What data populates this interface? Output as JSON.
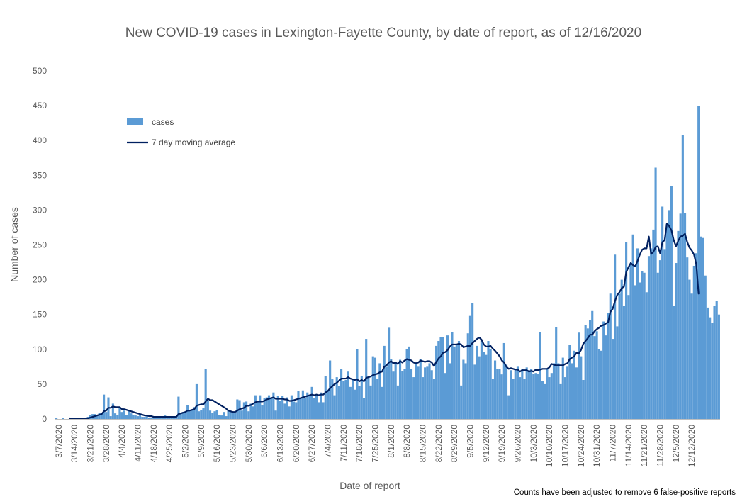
{
  "chart_data": {
    "type": "bar",
    "title": "New COVID-19 cases in Lexington-Fayette County, by date of report, as of 12/16/2020",
    "xlabel": "Date of report",
    "ylabel": "Number of cases",
    "ylim": [
      0,
      500
    ],
    "yticks": [
      0,
      50,
      100,
      150,
      200,
      250,
      300,
      350,
      400,
      450,
      500
    ],
    "x_tick_labels": [
      "3/7/2020",
      "3/14/2020",
      "3/21/2020",
      "3/28/2020",
      "4/4/2020",
      "4/11/2020",
      "4/18/2020",
      "4/25/2020",
      "5/2/2020",
      "5/9/2020",
      "5/16/2020",
      "5/23/2020",
      "5/30/2020",
      "6/6/2020",
      "6/13/2020",
      "6/20/2020",
      "6/27/2020",
      "7/4/2020",
      "7/11/2020",
      "7/18/2020",
      "7/25/2020",
      "8/1/2020",
      "8/8/2020",
      "8/15/2020",
      "8/22/2020",
      "8/29/2020",
      "9/5/2020",
      "9/12/2020",
      "9/19/2020",
      "9/26/2020",
      "10/3/2020",
      "10/10/2020",
      "10/17/2020",
      "10/24/2020",
      "10/31/2020",
      "11/7/2020",
      "11/14/2020",
      "11/21/2020",
      "11/28/2020",
      "12/5/2020",
      "12/12/2020"
    ],
    "grid": false,
    "legend": {
      "position": "upper-left"
    },
    "colors": {
      "bars": "#5b9bd5",
      "line": "#002060"
    },
    "series": [
      {
        "name": "cases",
        "type": "bar",
        "x_start": "3/6/2020",
        "values": [
          1,
          0,
          0,
          2,
          0,
          0,
          0,
          1,
          0,
          1,
          0,
          0,
          1,
          2,
          3,
          6,
          7,
          7,
          5,
          9,
          8,
          35,
          10,
          31,
          4,
          22,
          8,
          6,
          16,
          10,
          12,
          6,
          13,
          8,
          6,
          5,
          4,
          6,
          3,
          3,
          4,
          2,
          2,
          3,
          3,
          2,
          2,
          4,
          5,
          3,
          2,
          3,
          3,
          3,
          32,
          8,
          10,
          9,
          20,
          11,
          13,
          17,
          50,
          11,
          13,
          16,
          72,
          26,
          12,
          9,
          11,
          13,
          6,
          5,
          10,
          4,
          12,
          11,
          10,
          9,
          28,
          27,
          12,
          24,
          25,
          11,
          22,
          18,
          34,
          26,
          34,
          20,
          30,
          31,
          34,
          31,
          38,
          12,
          33,
          26,
          33,
          22,
          31,
          18,
          34,
          25,
          24,
          40,
          30,
          41,
          30,
          38,
          34,
          46,
          30,
          35,
          24,
          38,
          24,
          62,
          40,
          84,
          58,
          34,
          60,
          47,
          72,
          54,
          56,
          68,
          46,
          58,
          42,
          100,
          47,
          62,
          30,
          115,
          60,
          48,
          90,
          88,
          58,
          80,
          46,
          105,
          75,
          131,
          86,
          68,
          80,
          48,
          85,
          69,
          72,
          100,
          104,
          72,
          60,
          80,
          75,
          86,
          60,
          74,
          75,
          80,
          70,
          58,
          105,
          112,
          118,
          118,
          66,
          120,
          80,
          125,
          104,
          108,
          112,
          48,
          85,
          80,
          123,
          148,
          166,
          78,
          105,
          90,
          114,
          96,
          92,
          112,
          100,
          58,
          84,
          72,
          72,
          64,
          109,
          78,
          34,
          70,
          58,
          72,
          75,
          60,
          72,
          58,
          74,
          70,
          72,
          65,
          66,
          65,
          125,
          55,
          50,
          72,
          60,
          66,
          80,
          132,
          80,
          50,
          88,
          60,
          75,
          106,
          80,
          98,
          74,
          124,
          90,
          56,
          135,
          130,
          142,
          155,
          119,
          126,
          100,
          98,
          140,
          120,
          152,
          180,
          115,
          236,
          133,
          180,
          200,
          162,
          254,
          178,
          222,
          265,
          192,
          245,
          196,
          212,
          210,
          182,
          234,
          245,
          272,
          361,
          210,
          228,
          305,
          244,
          280,
          300,
          334,
          162,
          224,
          270,
          295,
          408,
          296,
          232,
          200,
          180,
          220,
          238,
          450,
          262,
          260,
          206,
          160,
          146,
          138,
          162,
          170,
          150
        ]
      },
      {
        "name": "7 day moving average",
        "type": "line",
        "values": [
          null,
          null,
          null,
          null,
          null,
          null,
          1,
          0,
          0,
          1,
          0,
          0,
          0,
          1,
          1,
          2,
          3,
          4,
          5,
          6,
          7,
          11,
          12,
          16,
          16,
          18,
          17,
          17,
          17,
          14,
          14,
          13,
          12,
          11,
          10,
          9,
          8,
          7,
          6,
          5,
          5,
          4,
          4,
          3,
          3,
          3,
          3,
          3,
          3,
          3,
          3,
          3,
          3,
          3,
          7,
          8,
          9,
          10,
          12,
          12,
          13,
          14,
          19,
          20,
          21,
          21,
          25,
          29,
          27,
          27,
          25,
          23,
          21,
          19,
          17,
          15,
          12,
          11,
          10,
          10,
          12,
          14,
          15,
          16,
          19,
          19,
          20,
          22,
          24,
          25,
          25,
          25,
          26,
          28,
          29,
          30,
          31,
          29,
          29,
          29,
          29,
          28,
          28,
          26,
          26,
          27,
          28,
          29,
          30,
          31,
          32,
          33,
          34,
          35,
          34,
          35,
          34,
          35,
          35,
          38,
          40,
          44,
          47,
          50,
          52,
          55,
          58,
          58,
          58,
          60,
          58,
          57,
          56,
          57,
          54,
          56,
          54,
          59,
          60,
          61,
          63,
          64,
          65,
          67,
          68,
          75,
          77,
          81,
          83,
          80,
          81,
          79,
          83,
          81,
          84,
          86,
          85,
          84,
          81,
          80,
          81,
          84,
          83,
          82,
          83,
          83,
          81,
          76,
          82,
          87,
          90,
          95,
          96,
          99,
          104,
          107,
          107,
          107,
          108,
          107,
          103,
          104,
          105,
          105,
          109,
          112,
          115,
          117,
          114,
          107,
          104,
          104,
          105,
          101,
          98,
          94,
          90,
          84,
          81,
          75,
          72,
          73,
          72,
          71,
          71,
          68,
          70,
          70,
          70,
          68,
          69,
          68,
          71,
          70,
          71,
          72,
          72,
          72,
          74,
          79,
          78,
          77,
          77,
          77,
          77,
          79,
          80,
          86,
          88,
          90,
          95,
          94,
          99,
          108,
          112,
          116,
          121,
          121,
          126,
          129,
          131,
          134,
          135,
          137,
          139,
          154,
          158,
          169,
          178,
          182,
          188,
          190,
          211,
          218,
          224,
          221,
          219,
          227,
          236,
          243,
          245,
          245,
          262,
          237,
          240,
          247,
          248,
          238,
          254,
          257,
          281,
          277,
          271,
          257,
          248,
          256,
          262,
          263,
          266,
          254,
          246,
          242,
          236,
          222,
          180
        ]
      }
    ],
    "footnote": "Counts have been adjusted to remove 6 false-positive reports"
  }
}
